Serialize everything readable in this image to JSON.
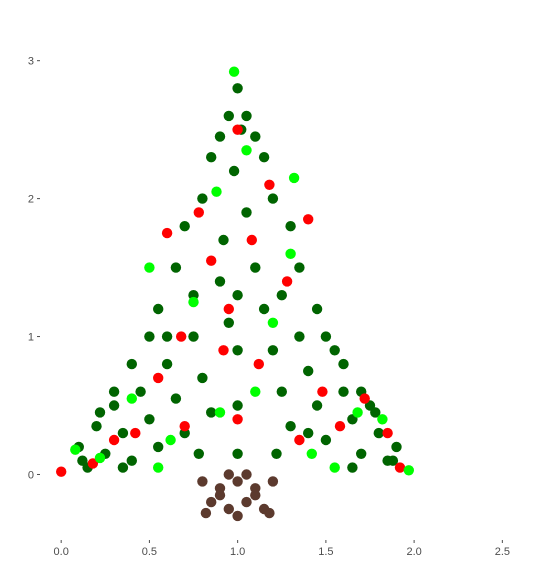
{
  "chart_data": {
    "type": "scatter",
    "title": "",
    "xlabel": "",
    "ylabel": "",
    "xlim": [
      -0.12,
      2.6
    ],
    "ylim": [
      -0.62,
      3.15
    ],
    "x_ticks": [
      {
        "value": 0.0,
        "label": "0.0"
      },
      {
        "value": 0.5,
        "label": "0.5"
      },
      {
        "value": 1.0,
        "label": "1.0"
      },
      {
        "value": 1.5,
        "label": "1.5"
      },
      {
        "value": 2.0,
        "label": "2.0"
      },
      {
        "value": 2.5,
        "label": "2.5"
      }
    ],
    "y_ticks": [
      {
        "value": 0,
        "label": "0"
      },
      {
        "value": 1,
        "label": "1"
      },
      {
        "value": 2,
        "label": "2"
      },
      {
        "value": 3,
        "label": "3"
      }
    ],
    "grid": false,
    "legend": "none",
    "series": [
      {
        "color": "#006400",
        "points": [
          [
            0.1,
            0.2
          ],
          [
            0.15,
            0.05
          ],
          [
            0.2,
            0.35
          ],
          [
            0.25,
            0.15
          ],
          [
            0.3,
            0.5
          ],
          [
            0.35,
            0.3
          ],
          [
            0.4,
            0.1
          ],
          [
            0.45,
            0.6
          ],
          [
            0.5,
            0.4
          ],
          [
            0.55,
            0.2
          ],
          [
            0.6,
            0.8
          ],
          [
            0.65,
            0.55
          ],
          [
            0.7,
            0.3
          ],
          [
            0.75,
            1.0
          ],
          [
            0.8,
            0.7
          ],
          [
            0.85,
            0.45
          ],
          [
            0.9,
            1.4
          ],
          [
            0.95,
            1.1
          ],
          [
            1.0,
            2.8
          ],
          [
            1.02,
            2.5
          ],
          [
            0.98,
            2.2
          ],
          [
            1.05,
            1.9
          ],
          [
            0.92,
            1.7
          ],
          [
            1.1,
            1.5
          ],
          [
            1.15,
            1.2
          ],
          [
            1.2,
            0.9
          ],
          [
            1.25,
            0.6
          ],
          [
            1.3,
            0.35
          ],
          [
            1.35,
            1.0
          ],
          [
            1.4,
            0.75
          ],
          [
            1.45,
            0.5
          ],
          [
            1.5,
            0.25
          ],
          [
            1.55,
            0.9
          ],
          [
            1.6,
            0.6
          ],
          [
            1.65,
            0.4
          ],
          [
            1.7,
            0.15
          ],
          [
            1.75,
            0.5
          ],
          [
            1.8,
            0.3
          ],
          [
            1.85,
            0.1
          ],
          [
            1.9,
            0.2
          ],
          [
            0.85,
            2.3
          ],
          [
            1.15,
            2.3
          ],
          [
            0.8,
            2.0
          ],
          [
            1.2,
            2.0
          ],
          [
            0.7,
            1.8
          ],
          [
            1.3,
            1.8
          ],
          [
            0.65,
            1.5
          ],
          [
            1.35,
            1.5
          ],
          [
            0.55,
            1.2
          ],
          [
            1.45,
            1.2
          ],
          [
            0.5,
            1.0
          ],
          [
            1.5,
            1.0
          ],
          [
            0.4,
            0.8
          ],
          [
            1.6,
            0.8
          ],
          [
            0.3,
            0.6
          ],
          [
            1.7,
            0.6
          ],
          [
            0.22,
            0.45
          ],
          [
            1.78,
            0.45
          ],
          [
            0.12,
            0.1
          ],
          [
            1.88,
            0.1
          ],
          [
            1.0,
            1.3
          ],
          [
            1.0,
            0.9
          ],
          [
            1.0,
            0.5
          ],
          [
            1.0,
            0.15
          ],
          [
            0.95,
            2.6
          ],
          [
            1.05,
            2.6
          ],
          [
            0.9,
            2.45
          ],
          [
            1.1,
            2.45
          ],
          [
            0.75,
            1.3
          ],
          [
            1.25,
            1.3
          ],
          [
            0.6,
            1.0
          ],
          [
            1.4,
            0.3
          ],
          [
            0.35,
            0.05
          ],
          [
            1.65,
            0.05
          ],
          [
            0.78,
            0.15
          ],
          [
            1.22,
            0.15
          ]
        ]
      },
      {
        "color": "#ff0000",
        "points": [
          [
            0.0,
            0.02
          ],
          [
            0.18,
            0.08
          ],
          [
            0.3,
            0.25
          ],
          [
            0.42,
            0.3
          ],
          [
            0.55,
            0.7
          ],
          [
            0.68,
            1.0
          ],
          [
            0.78,
            1.9
          ],
          [
            0.85,
            1.55
          ],
          [
            0.92,
            0.9
          ],
          [
            1.0,
            2.5
          ],
          [
            1.08,
            1.7
          ],
          [
            1.12,
            0.8
          ],
          [
            1.18,
            2.1
          ],
          [
            1.28,
            1.4
          ],
          [
            1.35,
            0.25
          ],
          [
            1.48,
            0.6
          ],
          [
            1.58,
            0.35
          ],
          [
            1.72,
            0.55
          ],
          [
            1.85,
            0.3
          ],
          [
            1.92,
            0.05
          ],
          [
            0.6,
            1.75
          ],
          [
            0.7,
            0.35
          ],
          [
            1.4,
            1.85
          ],
          [
            1.0,
            0.4
          ],
          [
            0.95,
            1.2
          ]
        ]
      },
      {
        "color": "#00ff00",
        "points": [
          [
            0.08,
            0.18
          ],
          [
            0.22,
            0.12
          ],
          [
            0.4,
            0.55
          ],
          [
            0.5,
            1.5
          ],
          [
            0.62,
            0.25
          ],
          [
            0.75,
            1.25
          ],
          [
            0.88,
            2.05
          ],
          [
            0.98,
            2.92
          ],
          [
            1.05,
            2.35
          ],
          [
            1.2,
            1.1
          ],
          [
            1.3,
            1.6
          ],
          [
            1.42,
            0.15
          ],
          [
            1.55,
            0.05
          ],
          [
            1.68,
            0.45
          ],
          [
            1.82,
            0.4
          ],
          [
            1.97,
            0.03
          ],
          [
            0.55,
            0.05
          ],
          [
            1.32,
            2.15
          ],
          [
            0.9,
            0.45
          ],
          [
            1.1,
            0.6
          ]
        ]
      },
      {
        "color": "#5c3a2e",
        "points": [
          [
            0.8,
            -0.05
          ],
          [
            0.9,
            -0.1
          ],
          [
            1.0,
            -0.05
          ],
          [
            1.1,
            -0.1
          ],
          [
            1.2,
            -0.05
          ],
          [
            0.85,
            -0.2
          ],
          [
            0.95,
            -0.25
          ],
          [
            1.05,
            -0.2
          ],
          [
            1.15,
            -0.25
          ],
          [
            0.82,
            -0.28
          ],
          [
            1.0,
            -0.3
          ],
          [
            1.18,
            -0.28
          ],
          [
            0.9,
            -0.15
          ],
          [
            1.1,
            -0.15
          ],
          [
            0.95,
            0.0
          ],
          [
            1.05,
            0.0
          ]
        ]
      }
    ]
  }
}
